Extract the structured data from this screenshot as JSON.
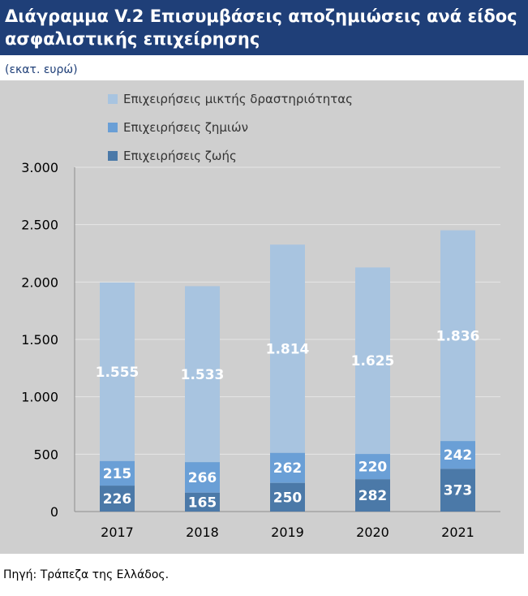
{
  "header": {
    "title_line1": "Διάγραμμα V.2 Επισυμβάσεις αποζημιώσεις ανά είδος",
    "title_line2": "ασφαλιστικής επιχείρησης",
    "unit": "(εκατ. ευρώ)"
  },
  "footer": {
    "source": "Πηγή: Τράπεζα της Ελλάδος."
  },
  "colors": {
    "title_bg": "#1f3f78",
    "panel_bg": "#cfcfcf",
    "life": "#4b79a8",
    "non_life": "#6a9fd6",
    "mixed": "#a8c4e0"
  },
  "chart_data": {
    "type": "bar",
    "stacked": true,
    "title": "Διάγραμμα V.2 Επισυμβάσεις αποζημιώσεις ανά είδος ασφαλιστικής επιχείρησης",
    "ylabel": "(εκατ. ευρώ)",
    "categories": [
      "2017",
      "2018",
      "2019",
      "2020",
      "2021"
    ],
    "ylim": [
      0,
      3000
    ],
    "yticks": [
      0,
      500,
      1000,
      1500,
      2000,
      2500,
      3000
    ],
    "ytick_labels": [
      "0",
      "500",
      "1.000",
      "1.500",
      "2.000",
      "2.500",
      "3.000"
    ],
    "grid": true,
    "legend_position": "top",
    "series": [
      {
        "name": "Επιχειρήσεις ζωής",
        "values": [
          226,
          165,
          250,
          282,
          373
        ],
        "labels": [
          "226",
          "165",
          "250",
          "282",
          "373"
        ],
        "color": "#4b79a8"
      },
      {
        "name": "Επιχειρήσεις ζημιών",
        "values": [
          215,
          266,
          262,
          220,
          242
        ],
        "labels": [
          "215",
          "266",
          "262",
          "220",
          "242"
        ],
        "color": "#6a9fd6"
      },
      {
        "name": "Επιχειρήσεις μικτής δραστηριότητας",
        "values": [
          1555,
          1533,
          1814,
          1625,
          1836
        ],
        "labels": [
          "1.555",
          "1.533",
          "1.814",
          "1.625",
          "1.836"
        ],
        "color": "#a8c4e0"
      }
    ]
  }
}
